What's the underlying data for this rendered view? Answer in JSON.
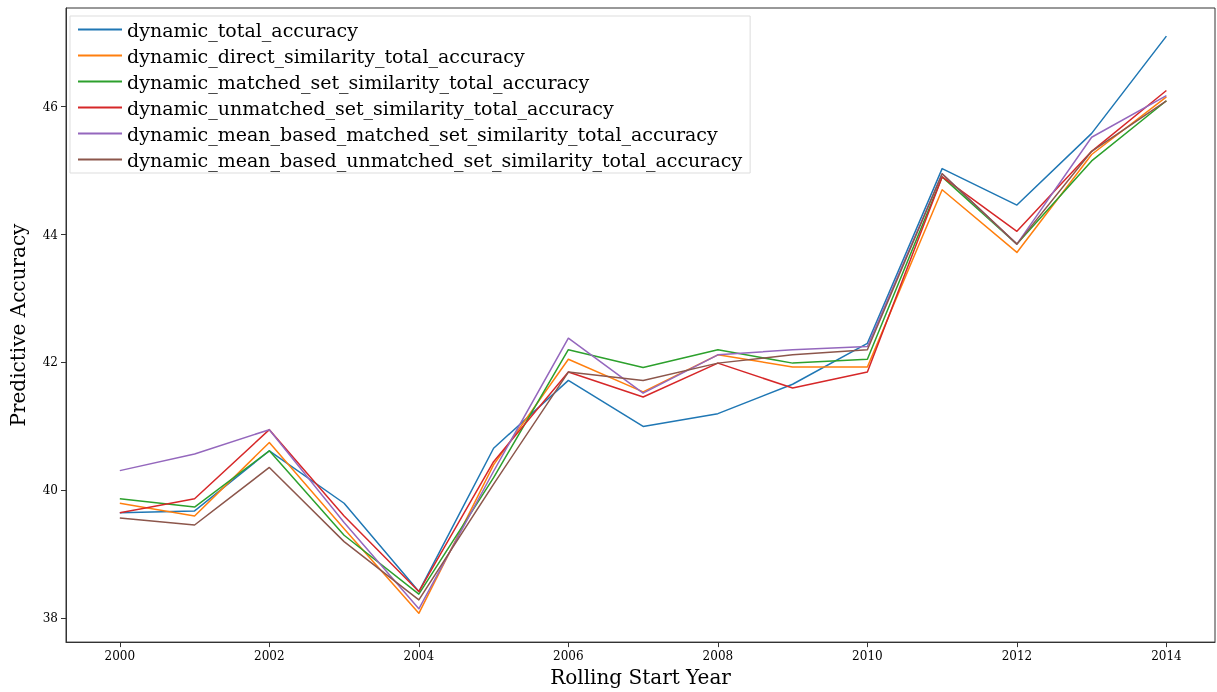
{
  "chart_data": {
    "type": "line",
    "xlabel": "Rolling Start Year",
    "ylabel": "Predictive Accuracy",
    "x": [
      2000,
      2001,
      2002,
      2003,
      2004,
      2005,
      2006,
      2007,
      2008,
      2009,
      2010,
      2011,
      2012,
      2013,
      2014
    ],
    "series": [
      {
        "name": "dynamic_total_accuracy",
        "color": "#1f77b4",
        "values": [
          39.65,
          39.68,
          40.62,
          39.8,
          38.42,
          40.66,
          41.72,
          41.0,
          41.2,
          41.66,
          42.3,
          45.03,
          44.46,
          45.58,
          47.1
        ]
      },
      {
        "name": "dynamic_direct_similarity_total_accuracy",
        "color": "#ff7f0e",
        "values": [
          39.8,
          39.6,
          40.75,
          39.4,
          38.08,
          40.4,
          42.05,
          41.54,
          42.12,
          41.93,
          41.93,
          44.7,
          43.72,
          45.25,
          46.15
        ]
      },
      {
        "name": "dynamic_matched_set_similarity_total_accuracy",
        "color": "#2ca02c",
        "values": [
          39.87,
          39.74,
          40.62,
          39.3,
          38.38,
          40.2,
          42.2,
          41.92,
          42.2,
          41.99,
          42.05,
          44.9,
          43.85,
          45.15,
          46.09
        ]
      },
      {
        "name": "dynamic_unmatched_set_similarity_total_accuracy",
        "color": "#d62728",
        "values": [
          39.65,
          39.87,
          40.95,
          39.6,
          38.42,
          40.45,
          41.85,
          41.46,
          41.99,
          41.6,
          41.85,
          44.9,
          44.05,
          45.3,
          46.25
        ]
      },
      {
        "name": "dynamic_mean_based_matched_set_similarity_total_accuracy",
        "color": "#9467bd",
        "values": [
          40.31,
          40.57,
          40.95,
          39.5,
          38.15,
          40.3,
          42.38,
          41.52,
          42.12,
          42.2,
          42.25,
          44.95,
          43.85,
          45.52,
          46.17
        ]
      },
      {
        "name": "dynamic_mean_based_unmatched_set_similarity_total_accuracy",
        "color": "#8c564b",
        "values": [
          39.57,
          39.46,
          40.36,
          39.2,
          38.29,
          40.1,
          41.85,
          41.72,
          41.99,
          42.12,
          42.2,
          44.95,
          43.85,
          45.3,
          46.09
        ]
      }
    ],
    "xlim": [
      1999.28,
      2014.65
    ],
    "xticks": [
      2000,
      2002,
      2004,
      2006,
      2008,
      2010,
      2012,
      2014
    ],
    "ylim": [
      37.63,
      47.54
    ],
    "yticks": [
      38,
      40,
      42,
      44,
      46
    ],
    "grid": false,
    "legend": "top left",
    "marker": "none",
    "line_style": "solid"
  }
}
